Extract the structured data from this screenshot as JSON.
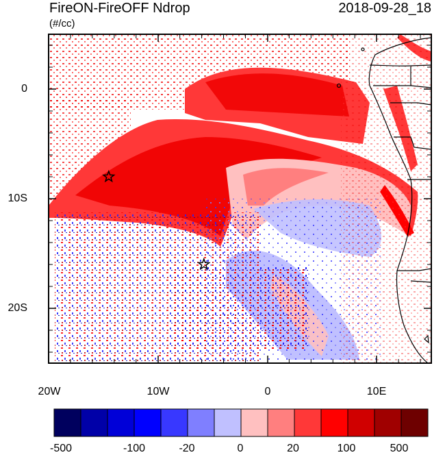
{
  "title": "FireON-FireOFF Ndrop",
  "date": "2018-09-28_18",
  "units": "(#/cc)",
  "map_extent": {
    "lon_min": -20,
    "lon_max": 15,
    "lat_min": -25,
    "lat_max": 5
  },
  "lat_ticks": [
    {
      "value": 0,
      "label": "0"
    },
    {
      "value": -10,
      "label": "10S"
    },
    {
      "value": -20,
      "label": "20S"
    }
  ],
  "lon_ticks": [
    {
      "value": -20,
      "label": "20W"
    },
    {
      "value": -10,
      "label": "10W"
    },
    {
      "value": 0,
      "label": "0"
    },
    {
      "value": 10,
      "label": "10E"
    }
  ],
  "markers": [
    {
      "name": "star-marker-1",
      "lon": -14.5,
      "lat": -8.0
    },
    {
      "name": "star-marker-2",
      "lon": -5.8,
      "lat": -16.0
    }
  ],
  "colorbar": {
    "colors": [
      "#00005e",
      "#0000a8",
      "#0000d8",
      "#0000ff",
      "#3838ff",
      "#7f7fff",
      "#c0c0ff",
      "#ffc0c0",
      "#ff7f7f",
      "#ff3838",
      "#ff0000",
      "#d00000",
      "#a00000",
      "#6e0000"
    ],
    "labels": [
      "-500",
      "-100",
      "-20",
      "0",
      "20",
      "100",
      "500"
    ]
  },
  "colors": {
    "red_light": "#ffc0c0",
    "red_mid": "#ff7f7f",
    "red": "#ff3838",
    "red_strong": "#f00000",
    "blue_light": "#c0c0ff",
    "blue": "#3838ff",
    "blue_dark": "#0000c0"
  }
}
